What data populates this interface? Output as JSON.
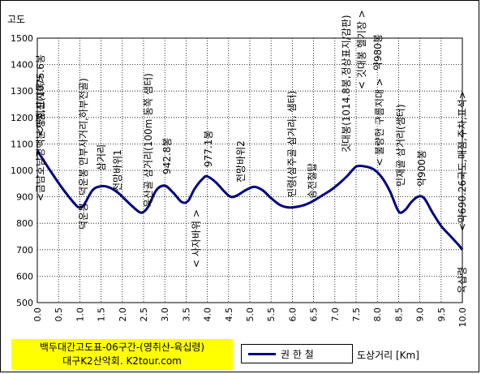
{
  "chart_data": {
    "type": "line",
    "ylabel": "고도",
    "xlabel": "도상거리 [Km]",
    "xlim": [
      0,
      10
    ],
    "ylim": [
      500,
      1500
    ],
    "xticks": [
      "0.0",
      "0.5",
      "1.0",
      "1.5",
      "2.0",
      "2.5",
      "3.0",
      "3.5",
      "4.0",
      "4.5",
      "5.0",
      "5.5",
      "6.0",
      "6.5",
      "7.0",
      "7.5",
      "8.0",
      "8.5",
      "9.0",
      "9.5",
      "10.0"
    ],
    "yticks": [
      500,
      600,
      700,
      800,
      900,
      1000,
      1100,
      1200,
      1300,
      1400,
      1500
    ],
    "grid": true,
    "series": [
      {
        "name": "권 한 철",
        "color": "#000080",
        "x": [
          0.0,
          0.3,
          0.6,
          0.9,
          1.0,
          1.1,
          1.3,
          1.5,
          1.7,
          1.9,
          2.1,
          2.3,
          2.45,
          2.6,
          2.8,
          3.0,
          3.2,
          3.4,
          3.55,
          3.7,
          3.9,
          4.0,
          4.2,
          4.4,
          4.55,
          4.7,
          4.9,
          5.1,
          5.3,
          5.5,
          5.7,
          5.9,
          6.1,
          6.3,
          6.5,
          6.7,
          6.9,
          7.1,
          7.3,
          7.5,
          7.7,
          7.9,
          8.1,
          8.3,
          8.5,
          8.65,
          8.8,
          8.95,
          9.1,
          9.3,
          9.5,
          9.7,
          9.9,
          10.0
        ],
        "y": [
          1075,
          1000,
          930,
          870,
          860,
          870,
          925,
          940,
          935,
          915,
          885,
          855,
          840,
          860,
          925,
          942,
          915,
          880,
          885,
          930,
          970,
          977,
          955,
          920,
          900,
          905,
          925,
          938,
          925,
          895,
          870,
          860,
          862,
          870,
          885,
          905,
          925,
          950,
          980,
          1014,
          1015,
          1005,
          975,
          920,
          845,
          850,
          880,
          900,
          895,
          840,
          790,
          755,
          720,
          700
        ]
      }
    ],
    "annotations": [
      {
        "x": 0.0,
        "text": "<영취산(1075.6봉"
      },
      {
        "x": 0.0,
        "text": "<금남호남정맥분기점,표지목>"
      },
      {
        "x": 1.0,
        "text": "덕운봉 안부사거리,하부전골)"
      },
      {
        "x": 1.0,
        "text": "덕운봉"
      },
      {
        "x": 1.5,
        "text": "삼거리"
      },
      {
        "x": 1.9,
        "text": "전망바위1"
      },
      {
        "x": 2.5,
        "text": "육산골 삼거리(100m 동쪽 샘터)"
      },
      {
        "x": 3.0,
        "text": "942.8봉"
      },
      {
        "x": 3.75,
        "text": "< 사자바위 >"
      },
      {
        "x": 4.0,
        "text": "977.1봉"
      },
      {
        "x": 4.9,
        "text": "전망바위2"
      },
      {
        "x": 6.0,
        "text": "민령(삼주골 삼거리, 샘터)"
      },
      {
        "x": 6.5,
        "text": "송전철탑"
      },
      {
        "x": 7.45,
        "text": "깃대봉(1014.8봉,정상표지/감판)"
      },
      {
        "x": 7.7,
        "text": "< 깃대봉 헬기장 >"
      },
      {
        "x": 7.98,
        "text": "약980봉"
      },
      {
        "x": 7.98,
        "text": "< 불량헌 구름지대 >"
      },
      {
        "x": 8.5,
        "text": "민재골 삼거리(샘터)"
      },
      {
        "x": 9.0,
        "text": "약900봉"
      },
      {
        "x": 10.0,
        "text": "<약690.26국도,매점,주차,표석>"
      },
      {
        "x": 10.0,
        "text": "육십령"
      }
    ]
  },
  "caption": {
    "line1": "백두대간고도표-06구간-(영취산-육십령)",
    "line2": "대구K2산악회. K2tour.com"
  },
  "legend": {
    "label": "권 한 철"
  }
}
